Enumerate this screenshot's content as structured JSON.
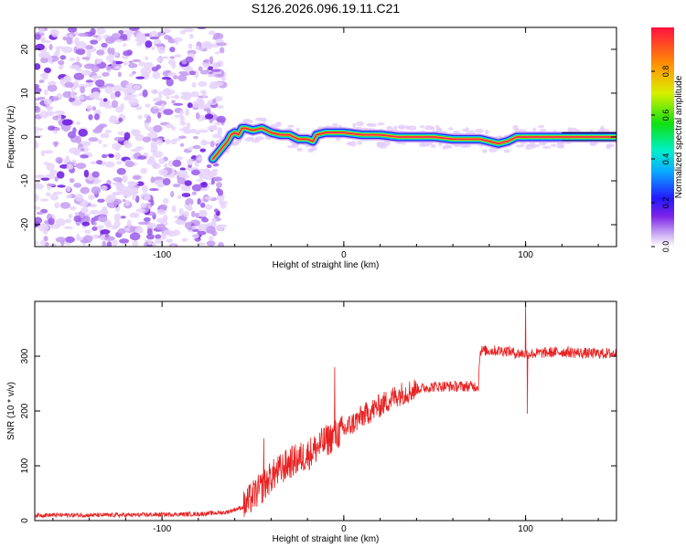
{
  "title": "S126.2026.096.19.11.C21",
  "chart_data": [
    {
      "type": "heatmap",
      "name": "spectrogram",
      "xlabel": "Height of straight line (km)",
      "ylabel": "Frequency (Hz)",
      "xlim": [
        -170,
        150
      ],
      "ylim": [
        -25,
        25
      ],
      "xticks": [
        -100,
        0,
        100
      ],
      "xtick_labels": [
        "-100",
        "0",
        "100"
      ],
      "yticks": [
        -20,
        -10,
        0,
        10,
        20
      ],
      "ytick_labels": [
        "-20",
        "-10",
        "0",
        "10",
        "20"
      ],
      "noise_region_x": [
        -170,
        -68
      ],
      "signal_track": {
        "x": [
          -72,
          -68,
          -64,
          -62,
          -60,
          -58,
          -56,
          -54,
          -50,
          -45,
          -40,
          -35,
          -30,
          -25,
          -20,
          -17,
          -15,
          -10,
          -5,
          0,
          10,
          20,
          30,
          40,
          50,
          60,
          70,
          75,
          80,
          85,
          90,
          95,
          100,
          110,
          120,
          130,
          140,
          150
        ],
        "y": [
          -5,
          -3,
          -1,
          0.5,
          1,
          0.5,
          2,
          2,
          1.5,
          2,
          1,
          0.5,
          0.5,
          -0.5,
          -0.5,
          -1,
          0.5,
          1,
          1,
          1,
          0.5,
          0.5,
          0,
          0,
          0,
          -0.5,
          -0.5,
          -0.5,
          -1,
          -1.5,
          -1,
          0,
          0,
          0,
          0,
          0,
          0,
          0
        ]
      },
      "colorbar": {
        "label": "Normalized spectral amplitude",
        "ticks": [
          0,
          0.2,
          0.4,
          0.6,
          0.8
        ],
        "tick_labels": [
          "0.0",
          "0.2",
          "0.4",
          "0.6",
          "0.8"
        ],
        "range": [
          0,
          1
        ]
      }
    },
    {
      "type": "line",
      "name": "snr",
      "xlabel": "Height of straight line (km)",
      "ylabel": "SNR (10 * v/v)",
      "xlim": [
        -170,
        150
      ],
      "ylim": [
        0,
        400
      ],
      "xticks": [
        -100,
        0,
        100
      ],
      "xtick_labels": [
        "-100",
        "0",
        "100"
      ],
      "yticks": [
        0,
        100,
        200,
        300
      ],
      "ytick_labels": [
        "0",
        "100",
        "200",
        "300"
      ],
      "line_color": "#e82020",
      "envelope": {
        "x": [
          -170,
          -120,
          -80,
          -65,
          -55,
          -50,
          -45,
          -40,
          -30,
          -20,
          -10,
          0,
          10,
          20,
          30,
          40,
          50,
          60,
          70,
          74,
          75,
          80,
          90,
          95,
          100,
          105,
          120,
          135,
          150
        ],
        "y": [
          10,
          10,
          12,
          15,
          25,
          45,
          60,
          80,
          105,
          120,
          145,
          165,
          190,
          210,
          230,
          240,
          245,
          245,
          245,
          245,
          310,
          310,
          310,
          305,
          305,
          305,
          308,
          305,
          305
        ]
      },
      "spikes": [
        {
          "x": -44,
          "y": 150
        },
        {
          "x": -5,
          "y": 280
        },
        {
          "x": 100,
          "y": 400
        },
        {
          "x": 101,
          "y": 195
        }
      ]
    }
  ]
}
